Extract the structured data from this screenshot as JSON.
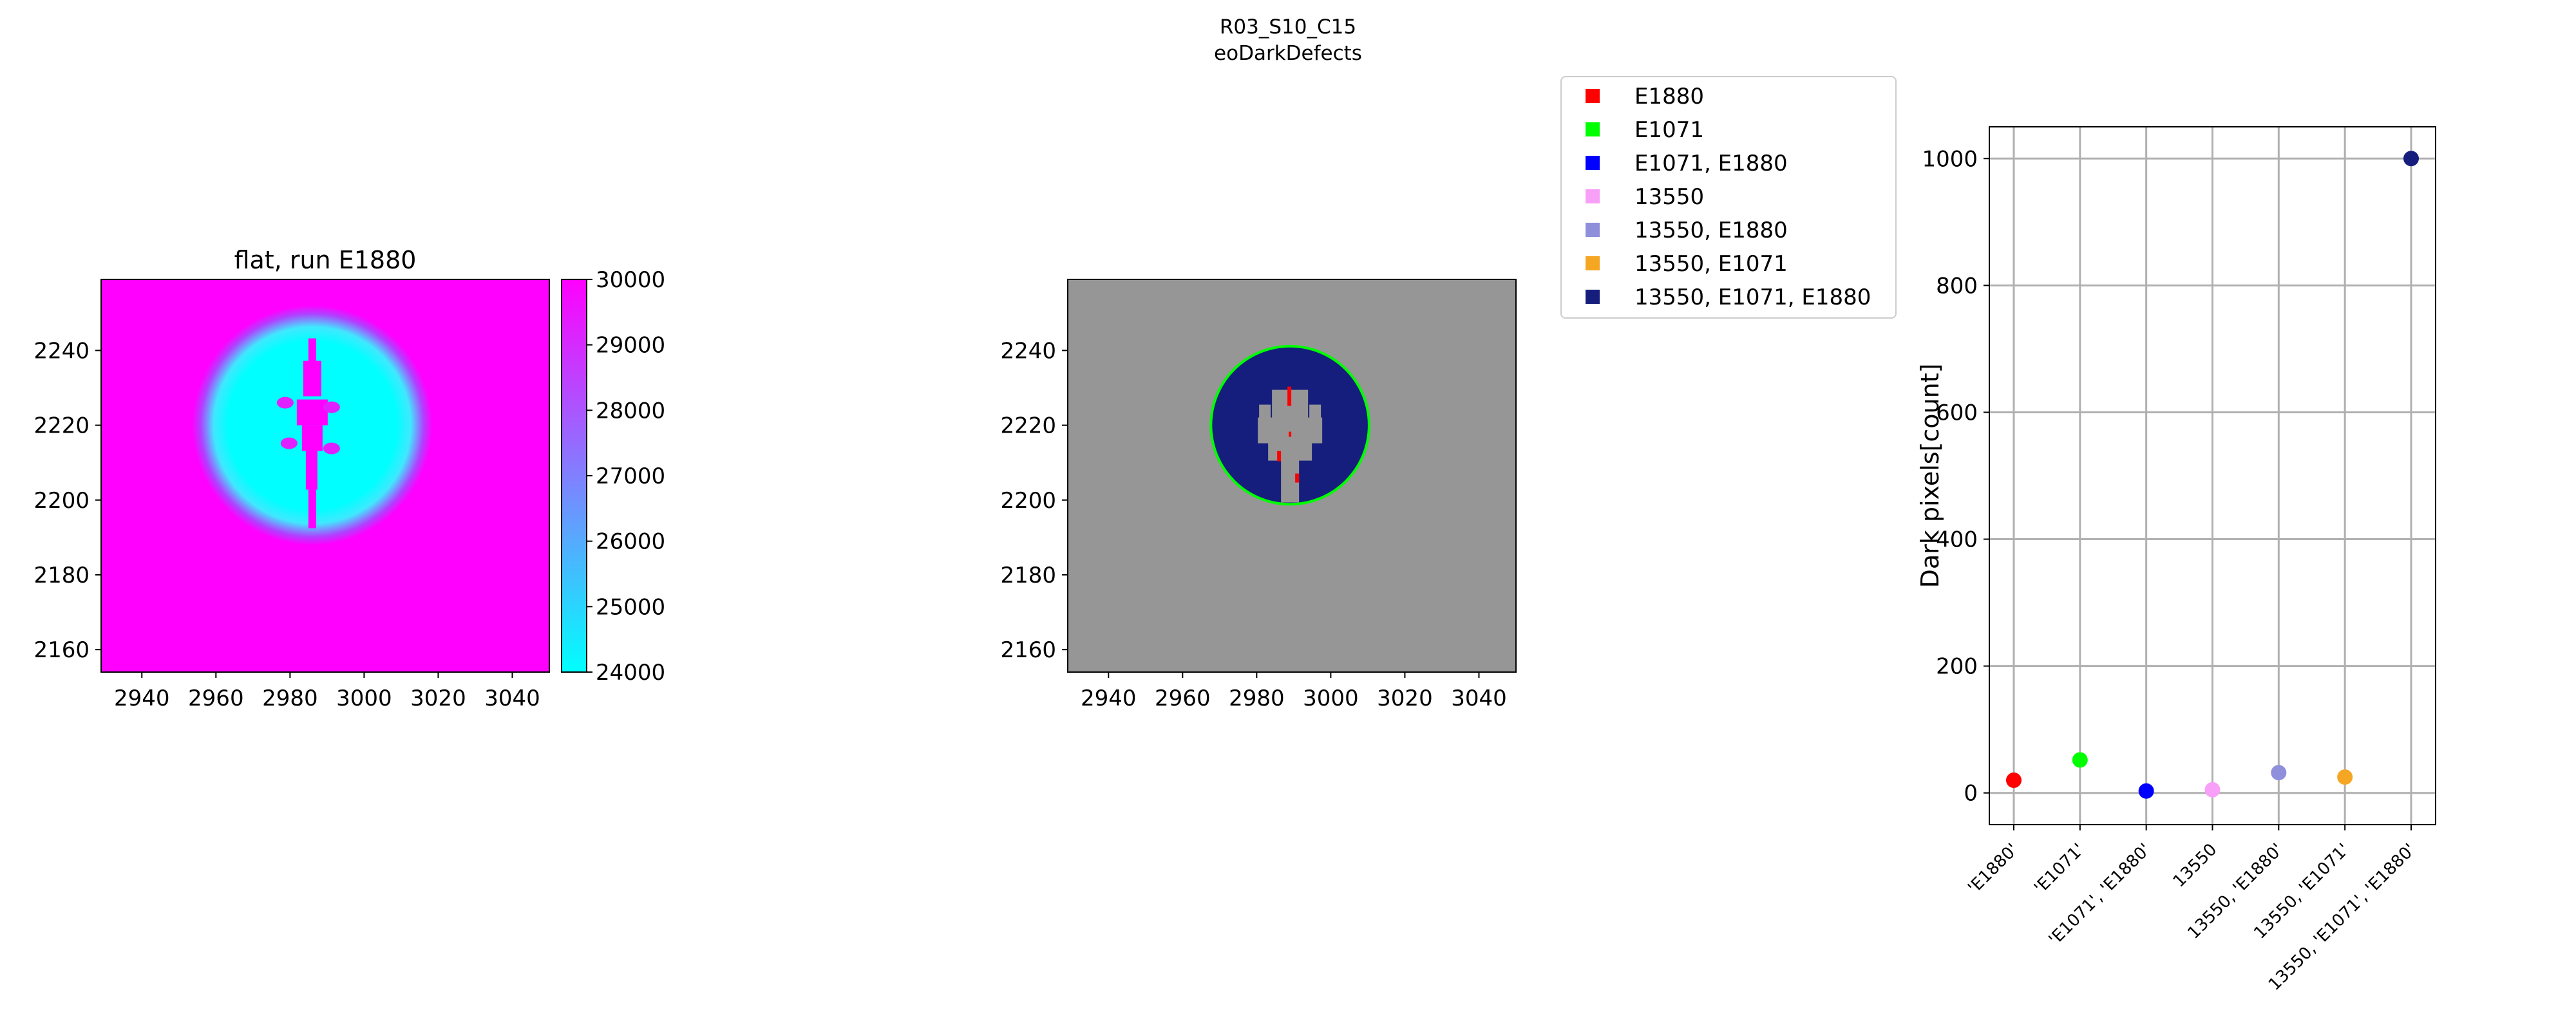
{
  "suptitle": {
    "line1": "R03_S10_C15",
    "line2": "eoDarkDefects"
  },
  "chart_data": [
    {
      "type": "heatmap",
      "title": "flat, run E1880",
      "x_ticks": [
        "2940",
        "2960",
        "2980",
        "3000",
        "3020",
        "3040"
      ],
      "y_ticks": [
        "2240",
        "2220",
        "2200",
        "2180",
        "2160"
      ],
      "xlim": [
        2929,
        3050
      ],
      "ylim": [
        2154,
        2259
      ],
      "colorbar": {
        "ticks": [
          "30000",
          "29000",
          "28000",
          "27000",
          "26000",
          "25000",
          "24000"
        ],
        "range": [
          24000,
          30000
        ],
        "low_color": "#00ffff",
        "mid_color": "#8080ff",
        "high_color": "#ff00ff"
      },
      "feature": {
        "center": [
          2986,
          2220
        ],
        "radius": 24,
        "description": "circular low-response region with a vertical high-response streak"
      }
    },
    {
      "type": "heatmap",
      "x_ticks": [
        "2940",
        "2960",
        "2980",
        "3000",
        "3020",
        "3040"
      ],
      "y_ticks": [
        "2240",
        "2220",
        "2200",
        "2180",
        "2160"
      ],
      "xlim": [
        2929,
        3050
      ],
      "ylim": [
        2154,
        2259
      ],
      "background_color": "#969696",
      "feature": {
        "center": [
          2989,
          2220
        ],
        "radius": 21
      },
      "legend": [
        {
          "label": "E1880",
          "color": "#ff0000"
        },
        {
          "label": "E1071",
          "color": "#00ff00"
        },
        {
          "label": "E1071, E1880",
          "color": "#0000ff"
        },
        {
          "label": "13550",
          "color": "#f8a0f8"
        },
        {
          "label": "13550, E1880",
          "color": "#8f8fdc"
        },
        {
          "label": "13550, E1071",
          "color": "#f5a623"
        },
        {
          "label": "13550, E1071, E1880",
          "color": "#161e7d"
        }
      ]
    },
    {
      "type": "scatter",
      "ylabel": "Dark pixels[count]",
      "ylim": [
        -50,
        1050
      ],
      "y_ticks": [
        "0",
        "200",
        "400",
        "600",
        "800",
        "1000"
      ],
      "grid": true,
      "categories": [
        "'E1880'",
        "'E1071'",
        "'E1071', 'E1880'",
        "13550",
        "13550, 'E1880'",
        "13550, 'E1071'",
        "13550, 'E1071', 'E1880'"
      ],
      "values": [
        20,
        52,
        3,
        5,
        32,
        25,
        1000
      ],
      "colors": [
        "#ff0000",
        "#00ff00",
        "#0000ff",
        "#f8a0f8",
        "#8f8fdc",
        "#f5a623",
        "#161e7d"
      ]
    }
  ]
}
